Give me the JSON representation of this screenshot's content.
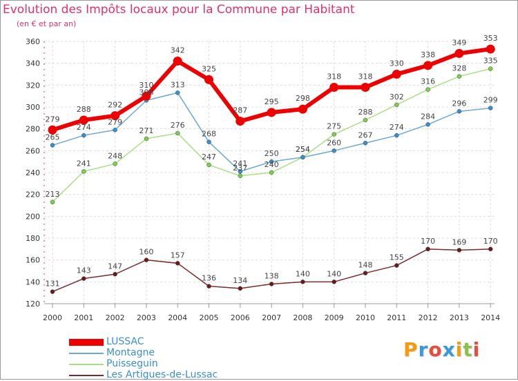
{
  "header": {
    "title": "Evolution des Impôts locaux pour la Commune par Habitant",
    "subtitle": "(en € et par an)"
  },
  "logo": {
    "text": "Proxiti",
    "letters": [
      "P",
      "r",
      "o",
      "x",
      "i",
      "t",
      "i"
    ],
    "colors": [
      "#f39c12",
      "#3a9ad9",
      "#e74c3c",
      "#3a9ad9",
      "#f39c12",
      "#8bc34a",
      "#e74c3c"
    ]
  },
  "chart_data": {
    "type": "line",
    "title": "Evolution des Impôts locaux pour la Commune par Habitant",
    "subtitle": "(en € et par an)",
    "xlabel": "",
    "ylabel": "",
    "categories": [
      "2000",
      "2001",
      "2002",
      "2003",
      "2004",
      "2005",
      "2006",
      "2007",
      "2008",
      "2009",
      "2010",
      "2011",
      "2012",
      "2013",
      "2014"
    ],
    "ylim": [
      120,
      360
    ],
    "yticks": [
      120,
      140,
      160,
      180,
      200,
      220,
      240,
      260,
      280,
      300,
      320,
      340,
      360
    ],
    "grid": true,
    "legend_position": "bottom-left",
    "series": [
      {
        "name": "LUSSAC",
        "color": "#ee0000",
        "marker": "#ee0000",
        "width": 6,
        "values": [
          279,
          288,
          292,
          310,
          342,
          325,
          287,
          295,
          298,
          318,
          318,
          330,
          338,
          349,
          353
        ]
      },
      {
        "name": "Montagne",
        "color": "#6aa8d8",
        "marker": "#3a8ed0",
        "width": 1.5,
        "values": [
          265,
          274,
          279,
          306,
          313,
          268,
          241,
          250,
          254,
          260,
          267,
          274,
          284,
          296,
          299
        ]
      },
      {
        "name": "Puisseguin",
        "color": "#a8e080",
        "marker": "#7ccf4a",
        "width": 1.5,
        "values": [
          213,
          241,
          248,
          271,
          276,
          247,
          237,
          240,
          254,
          275,
          288,
          302,
          316,
          328,
          335
        ]
      },
      {
        "name": "Les Artigues-de-Lussac",
        "color": "#7a2a2a",
        "marker": "#6a1a1a",
        "width": 1.5,
        "values": [
          131,
          143,
          147,
          160,
          157,
          136,
          134,
          138,
          140,
          140,
          148,
          155,
          170,
          169,
          170
        ]
      }
    ]
  }
}
